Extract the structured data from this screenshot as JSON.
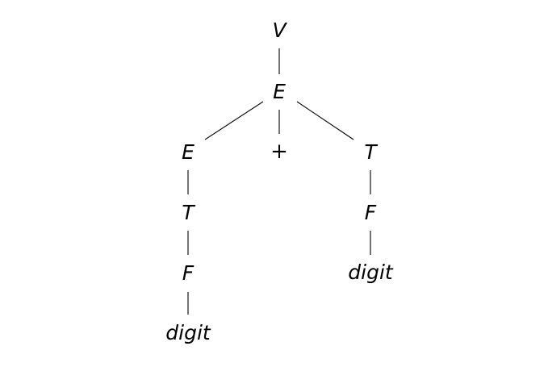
{
  "tree": {
    "root": {
      "label": "V",
      "children": [
        {
          "label": "E",
          "children": [
            {
              "label": "E",
              "children": [
                {
                  "label": "T",
                  "children": [
                    {
                      "label": "F",
                      "children": [
                        {
                          "label": "digit"
                        }
                      ]
                    }
                  ]
                }
              ]
            },
            {
              "label": "+"
            },
            {
              "label": "T",
              "children": [
                {
                  "label": "F",
                  "children": [
                    {
                      "label": "digit"
                    }
                  ]
                }
              ]
            }
          ]
        }
      ]
    }
  }
}
